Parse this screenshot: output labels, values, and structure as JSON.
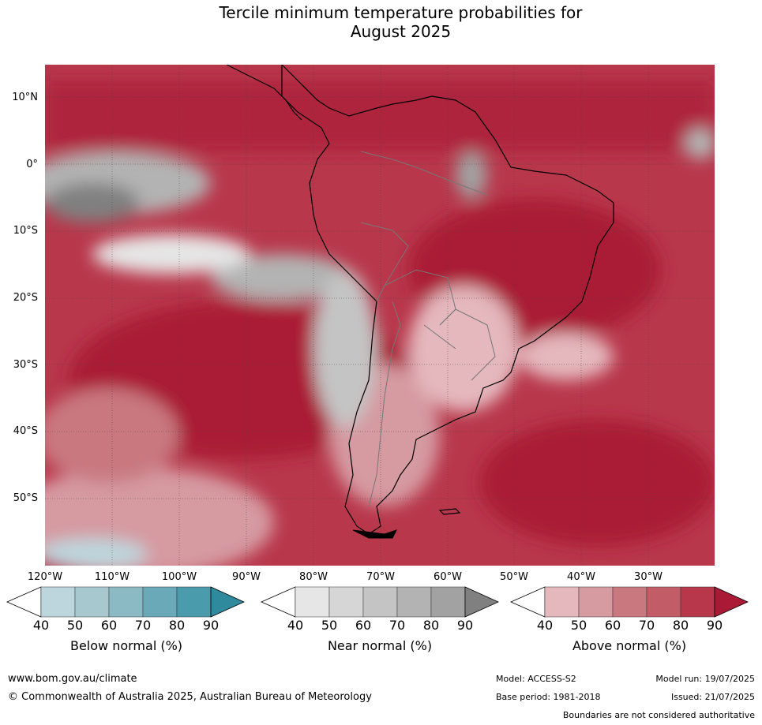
{
  "title_line1": "Tercile minimum temperature probabilities for",
  "title_line2": "August 2025",
  "map": {
    "lat_labels": [
      "10°N",
      "0°",
      "10°S",
      "20°S",
      "30°S",
      "40°S",
      "50°S"
    ],
    "lon_labels": [
      "120°W",
      "110°W",
      "100°W",
      "90°W",
      "80°W",
      "70°W",
      "60°W",
      "50°W",
      "40°W",
      "30°W"
    ],
    "extent": {
      "lon": [
        -120,
        -20
      ],
      "lat": [
        -60,
        15
      ]
    }
  },
  "colorbars": [
    {
      "label": "Below normal (%)",
      "ticks": [
        "40",
        "50",
        "60",
        "70",
        "80",
        "90"
      ],
      "colors": [
        "#bdd5dc",
        "#a7c8cf",
        "#8bb9c4",
        "#6aa9b8",
        "#4a9bab",
        "#2e8a9c"
      ]
    },
    {
      "label": "Near normal (%)",
      "ticks": [
        "40",
        "50",
        "60",
        "70",
        "80",
        "90"
      ],
      "colors": [
        "#e6e6e6",
        "#d6d6d6",
        "#c4c4c4",
        "#b3b3b3",
        "#a2a2a2",
        "#808080"
      ]
    },
    {
      "label": "Above normal (%)",
      "ticks": [
        "40",
        "50",
        "60",
        "70",
        "80",
        "90"
      ],
      "colors": [
        "#e4b8bd",
        "#d69aa1",
        "#c97880",
        "#c25c66",
        "#b8374b",
        "#aa1a36"
      ]
    }
  ],
  "footer": {
    "url": "www.bom.gov.au/climate",
    "copyright": "© Commonwealth of Australia 2025, Australian Bureau of Meteorology",
    "model": "Model: ACCESS-S2",
    "base_period": "Base period: 1981-2018",
    "model_run": "Model run: 19/07/2025",
    "issued": "Issued: 21/07/2025",
    "disclaimer": "Boundaries are not considered authoritative"
  }
}
